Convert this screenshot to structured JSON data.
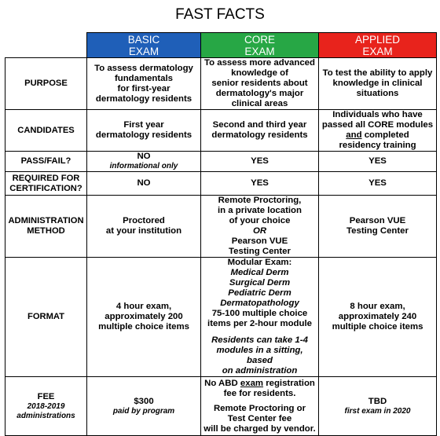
{
  "title": "FAST FACTS",
  "headers": {
    "basic": [
      "BASIC",
      "EXAM"
    ],
    "core": [
      "CORE",
      "EXAM"
    ],
    "applied": [
      "APPLIED",
      "EXAM"
    ]
  },
  "rows": {
    "purpose": {
      "label": "PURPOSE",
      "basic": [
        "To assess dermatology",
        "fundamentals",
        "for first-year",
        "dermatology residents"
      ],
      "core": [
        "To assess more advanced",
        "knowledge of",
        "senior residents about",
        "dermatology's major",
        "clinical areas"
      ],
      "applied": [
        "To test the ability to apply",
        "knowledge in clinical",
        "situations"
      ]
    },
    "candidates": {
      "label": "CANDIDATES",
      "basic": [
        "First year",
        "dermatology residents"
      ],
      "core": [
        "Second and third year",
        "dermatology residents"
      ],
      "applied_line1": "Individuals who have",
      "applied_line2": "passed all CORE modules",
      "applied_and": "and",
      "applied_line3_rest": " completed",
      "applied_line4": "residency training"
    },
    "passfail": {
      "label": "PASS/FAIL?",
      "basic": "NO",
      "basic_note": "informational only",
      "core": "YES",
      "applied": "YES"
    },
    "required": {
      "label": [
        "REQUIRED FOR",
        "CERTIFICATION?"
      ],
      "basic": "NO",
      "core": "YES",
      "applied": "YES"
    },
    "administration": {
      "label": [
        "ADMINISTRATION",
        "METHOD"
      ],
      "basic": [
        "Proctored",
        "at your institution"
      ],
      "core": [
        "Remote Proctoring,",
        "in a private location",
        "of your choice"
      ],
      "core_or": "OR",
      "core_after": [
        "Pearson VUE",
        "Testing Center"
      ],
      "applied": [
        "Pearson VUE",
        "Testing Center"
      ]
    },
    "format": {
      "label": "FORMAT",
      "basic": [
        "4 hour exam,",
        "approximately 200",
        "multiple choice items"
      ],
      "core_head": "Modular Exam:",
      "core_modules": [
        "Medical Derm",
        "Surgical Derm",
        "Pediatric Derm",
        "Dermatopathology"
      ],
      "core_items": [
        "75-100 multiple choice",
        "items per 2-hour module"
      ],
      "core_note": [
        "Residents can take 1-4",
        "modules in a sitting, based",
        "on administration"
      ],
      "applied": [
        "8 hour exam,",
        "approximately 240",
        "multiple choice items"
      ]
    },
    "fee": {
      "label": "FEE",
      "label_note": [
        "2018-2019",
        "administrations"
      ],
      "basic": "$300",
      "basic_note": "paid by program",
      "core_p1_a": "No ABD ",
      "core_p1_exam": "exam",
      "core_p1_b": " registration",
      "core_p1_line2": "fee for residents.",
      "core_p2": [
        "Remote Proctoring or",
        "Test Center fee",
        "will be charged by vendor."
      ],
      "applied": "TBD",
      "applied_note": "first exam in 2020"
    }
  }
}
